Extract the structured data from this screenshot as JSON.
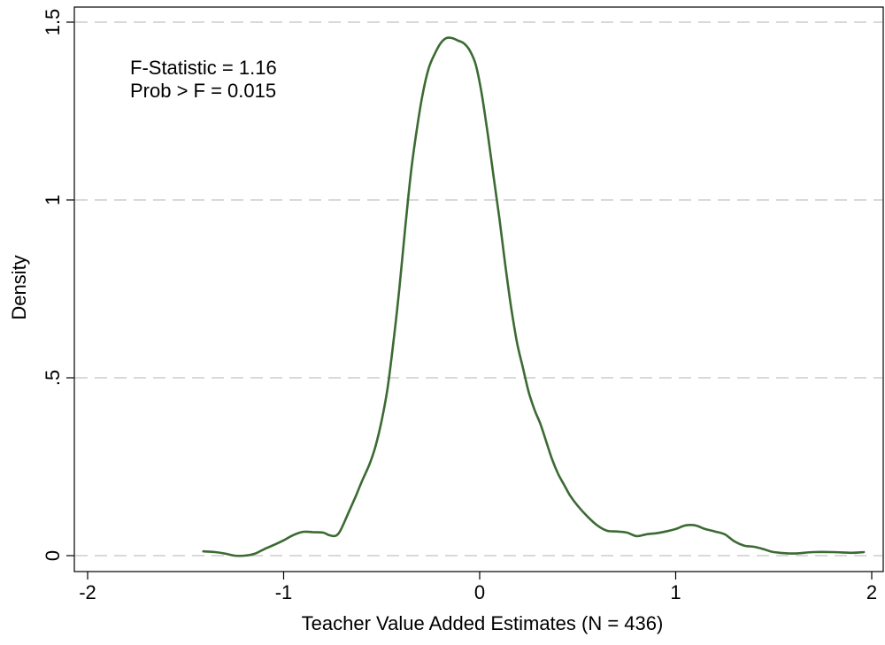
{
  "chart_data": {
    "type": "line",
    "title": "",
    "xlabel": "Teacher Value Added Estimates (N = 436)",
    "ylabel": "Density",
    "xlim": [
      -2,
      2
    ],
    "ylim": [
      0,
      1.5
    ],
    "x_ticks": [
      -2,
      -1,
      0,
      1,
      2
    ],
    "x_tick_labels": [
      "-2",
      "-1",
      "0",
      "1",
      "2"
    ],
    "y_ticks": [
      0,
      0.5,
      1,
      1.5
    ],
    "y_tick_labels": [
      "0",
      ".5",
      "1",
      "1.5"
    ],
    "grid": "horizontal dashed",
    "annotations": [
      "F-Statistic = 1.16",
      "Prob > F = 0.015"
    ],
    "series": [
      {
        "color": "#3c6a33",
        "points": [
          [
            -1.41,
            0.012
          ],
          [
            -1.35,
            0.01
          ],
          [
            -1.3,
            0.006
          ],
          [
            -1.25,
            0.0
          ],
          [
            -1.2,
            0.0
          ],
          [
            -1.15,
            0.005
          ],
          [
            -1.1,
            0.018
          ],
          [
            -1.05,
            0.03
          ],
          [
            -1.0,
            0.043
          ],
          [
            -0.95,
            0.058
          ],
          [
            -0.9,
            0.067
          ],
          [
            -0.85,
            0.066
          ],
          [
            -0.8,
            0.065
          ],
          [
            -0.77,
            0.058
          ],
          [
            -0.74,
            0.055
          ],
          [
            -0.72,
            0.062
          ],
          [
            -0.7,
            0.082
          ],
          [
            -0.67,
            0.12
          ],
          [
            -0.63,
            0.17
          ],
          [
            -0.6,
            0.21
          ],
          [
            -0.56,
            0.26
          ],
          [
            -0.53,
            0.31
          ],
          [
            -0.5,
            0.38
          ],
          [
            -0.47,
            0.47
          ],
          [
            -0.44,
            0.6
          ],
          [
            -0.41,
            0.75
          ],
          [
            -0.38,
            0.92
          ],
          [
            -0.35,
            1.08
          ],
          [
            -0.32,
            1.2
          ],
          [
            -0.29,
            1.3
          ],
          [
            -0.26,
            1.37
          ],
          [
            -0.23,
            1.41
          ],
          [
            -0.2,
            1.44
          ],
          [
            -0.17,
            1.455
          ],
          [
            -0.14,
            1.455
          ],
          [
            -0.11,
            1.448
          ],
          [
            -0.08,
            1.44
          ],
          [
            -0.05,
            1.42
          ],
          [
            -0.02,
            1.38
          ],
          [
            0.01,
            1.3
          ],
          [
            0.04,
            1.19
          ],
          [
            0.07,
            1.07
          ],
          [
            0.1,
            0.95
          ],
          [
            0.13,
            0.82
          ],
          [
            0.16,
            0.7
          ],
          [
            0.19,
            0.6
          ],
          [
            0.22,
            0.53
          ],
          [
            0.25,
            0.46
          ],
          [
            0.28,
            0.41
          ],
          [
            0.31,
            0.37
          ],
          [
            0.34,
            0.32
          ],
          [
            0.37,
            0.27
          ],
          [
            0.4,
            0.23
          ],
          [
            0.43,
            0.2
          ],
          [
            0.46,
            0.17
          ],
          [
            0.5,
            0.14
          ],
          [
            0.55,
            0.11
          ],
          [
            0.6,
            0.085
          ],
          [
            0.65,
            0.07
          ],
          [
            0.7,
            0.068
          ],
          [
            0.75,
            0.065
          ],
          [
            0.8,
            0.055
          ],
          [
            0.85,
            0.06
          ],
          [
            0.9,
            0.063
          ],
          [
            0.95,
            0.068
          ],
          [
            1.0,
            0.075
          ],
          [
            1.05,
            0.085
          ],
          [
            1.1,
            0.085
          ],
          [
            1.15,
            0.075
          ],
          [
            1.2,
            0.068
          ],
          [
            1.25,
            0.06
          ],
          [
            1.3,
            0.04
          ],
          [
            1.35,
            0.028
          ],
          [
            1.4,
            0.025
          ],
          [
            1.45,
            0.018
          ],
          [
            1.5,
            0.01
          ],
          [
            1.6,
            0.006
          ],
          [
            1.7,
            0.01
          ],
          [
            1.8,
            0.01
          ],
          [
            1.9,
            0.008
          ],
          [
            1.96,
            0.01
          ]
        ]
      }
    ]
  }
}
